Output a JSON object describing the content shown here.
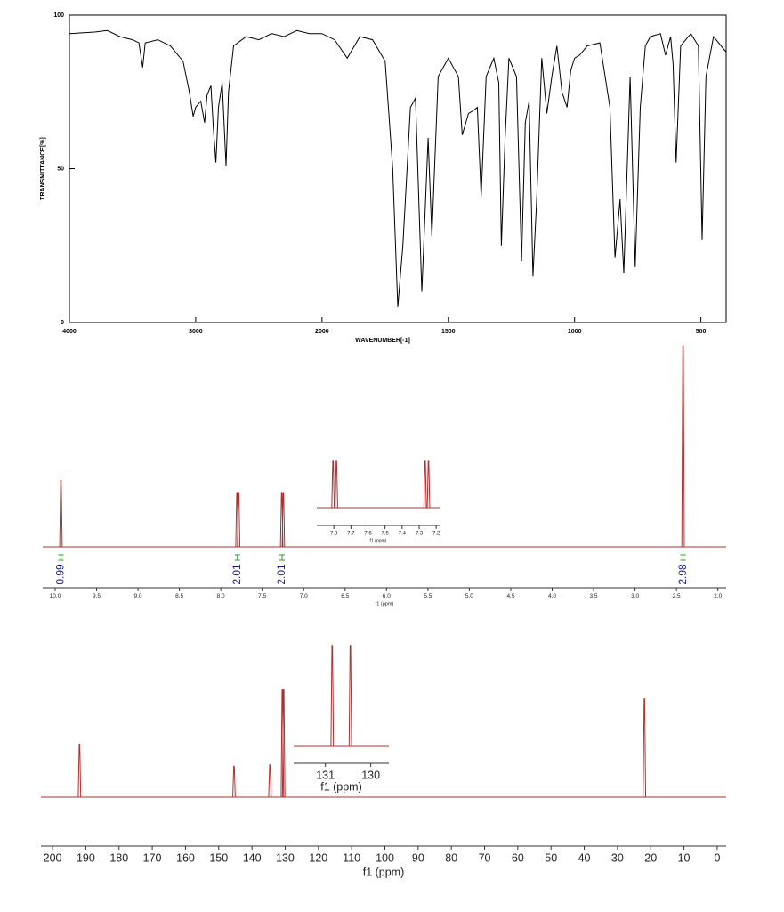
{
  "chart_data": [
    {
      "type": "line",
      "xlabel": "WAVENUMBER[-1]",
      "ylabel": "TRANSMITTANCE[%]",
      "xlim": [
        4000,
        400
      ],
      "xscale": {
        "break": 2000,
        "factor": 2
      },
      "ylim": [
        0,
        100
      ],
      "xticks": [
        4000,
        3000,
        2000,
        1500,
        1000,
        500
      ],
      "yticks": [
        0,
        50,
        100
      ],
      "color": "#000000",
      "x": [
        4000,
        3800,
        3700,
        3600,
        3500,
        3450,
        3420,
        3400,
        3300,
        3200,
        3100,
        3050,
        3020,
        3000,
        2960,
        2930,
        2910,
        2880,
        2860,
        2840,
        2820,
        2790,
        2760,
        2740,
        2700,
        2600,
        2500,
        2400,
        2300,
        2200,
        2100,
        2000,
        1950,
        1900,
        1850,
        1800,
        1750,
        1720,
        1700,
        1680,
        1650,
        1630,
        1605,
        1580,
        1565,
        1540,
        1500,
        1460,
        1445,
        1420,
        1400,
        1385,
        1370,
        1350,
        1320,
        1300,
        1290,
        1275,
        1260,
        1230,
        1210,
        1195,
        1180,
        1165,
        1150,
        1130,
        1110,
        1090,
        1070,
        1050,
        1030,
        1015,
        1000,
        980,
        950,
        900,
        860,
        840,
        820,
        805,
        780,
        760,
        740,
        720,
        700,
        660,
        640,
        620,
        610,
        598,
        580,
        540,
        510,
        495,
        480,
        450,
        420,
        400
      ],
      "values": [
        94,
        94.5,
        95,
        93,
        92,
        91,
        83,
        91,
        92,
        90,
        85,
        75,
        67,
        70,
        72,
        65,
        74,
        77,
        63,
        52,
        70,
        78,
        51,
        75,
        90,
        93,
        92,
        94,
        93,
        95,
        94,
        94,
        92,
        86,
        93,
        92,
        85,
        50,
        5,
        25,
        70,
        73,
        10,
        60,
        28,
        80,
        86,
        80,
        61,
        68,
        69,
        70,
        41,
        80,
        86,
        78,
        25,
        60,
        86,
        80,
        20,
        65,
        72,
        15,
        40,
        86,
        68,
        80,
        90,
        75,
        70,
        82,
        86,
        87,
        90,
        91,
        70,
        21,
        40,
        16,
        80,
        18,
        70,
        90,
        93,
        94,
        87,
        93,
        84,
        52,
        90,
        94,
        90,
        27,
        80,
        93,
        90,
        88
      ]
    },
    {
      "type": "spectrum",
      "xlabel": "f1 (ppm)",
      "color": "#b03030",
      "xlim": [
        10.15,
        1.9
      ],
      "ylim": [
        0,
        100
      ],
      "xticks": [
        {
          "value": 10,
          "label": "10.0"
        },
        9.5,
        {
          "value": 9,
          "label": "9.0"
        },
        8.5,
        {
          "value": 8,
          "label": "8.0"
        },
        7.5,
        {
          "value": 7,
          "label": "7.0"
        },
        6.5,
        {
          "value": 6,
          "label": "6.0"
        },
        5.5,
        {
          "value": 5,
          "label": "5.0"
        },
        4.5,
        {
          "value": 4,
          "label": "4.0"
        },
        3.5,
        {
          "value": 3,
          "label": "3.0"
        },
        2.5,
        {
          "value": 2,
          "label": "2.0"
        }
      ],
      "peaks": [
        9.93,
        7.805,
        7.785,
        7.265,
        7.245,
        2.42
      ],
      "values": [
        33,
        27,
        27,
        27,
        27,
        100
      ],
      "integrals": [
        {
          "x": 9.93,
          "value": 0.99
        },
        {
          "x": 7.8,
          "value": 2.01
        },
        {
          "x": 7.26,
          "value": 2.01
        },
        {
          "x": 2.42,
          "value": 2.98
        }
      ],
      "inset": {
        "xlim": [
          7.9,
          7.18
        ],
        "ylim": [
          0,
          30
        ],
        "xticks": [
          7.8,
          7.7,
          7.6,
          7.5,
          7.4,
          7.3,
          7.2
        ],
        "xlabel": "f1 (ppm)"
      }
    },
    {
      "type": "spectrum",
      "xlabel": "f1 (ppm)",
      "color": "#b03030",
      "xlim": [
        203.5,
        -2.7
      ],
      "ylim": [
        0,
        100
      ],
      "xticks": [
        200,
        190,
        180,
        170,
        160,
        150,
        140,
        130,
        120,
        110,
        100,
        90,
        80,
        70,
        60,
        50,
        40,
        30,
        20,
        10,
        0
      ],
      "peaks": [
        191.9,
        145.4,
        134.6,
        130.85,
        130.45,
        21.9
      ],
      "values": [
        41,
        24,
        25,
        83,
        83,
        76
      ],
      "inset": {
        "xlim": [
          131.7,
          129.6
        ],
        "ylim": [
          0,
          85
        ],
        "xticks": [
          131,
          130
        ],
        "xlabel": "f1 (ppm)"
      }
    }
  ]
}
